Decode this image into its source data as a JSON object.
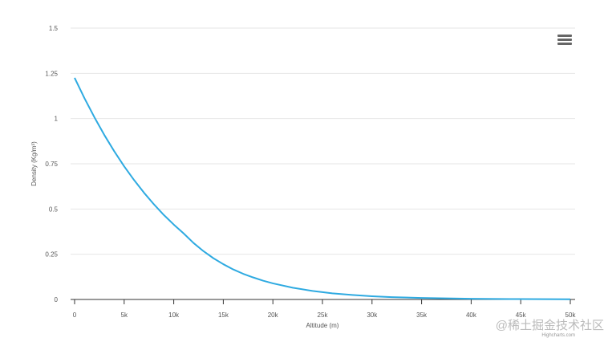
{
  "chart_data": {
    "type": "line",
    "x_label": "Altitude (m)",
    "y_label": "Density (Kg/m³)",
    "credits": "Highcharts.com",
    "watermark": "@稀土掘金技术社区",
    "x": [
      0,
      1000,
      2000,
      3000,
      4000,
      5000,
      6000,
      7000,
      8000,
      9000,
      10000,
      11000,
      12000,
      13000,
      14000,
      15000,
      16000,
      17000,
      18000,
      19000,
      20000,
      22000,
      24000,
      26000,
      28000,
      30000,
      32000,
      35000,
      40000,
      45000,
      50000
    ],
    "series": [
      {
        "name": "Density",
        "color": "#2eaae1",
        "values": [
          1.225,
          1.112,
          1.007,
          0.909,
          0.819,
          0.736,
          0.66,
          0.59,
          0.526,
          0.467,
          0.414,
          0.365,
          0.312,
          0.267,
          0.228,
          0.195,
          0.166,
          0.142,
          0.122,
          0.104,
          0.089,
          0.065,
          0.047,
          0.034,
          0.025,
          0.018,
          0.013,
          0.0085,
          0.004,
          0.002,
          0.001
        ]
      }
    ],
    "xlim": [
      0,
      50000
    ],
    "xticks": [
      0,
      {
        "value": 5000,
        "label": "5k"
      },
      {
        "value": 10000,
        "label": "10k"
      },
      {
        "value": 15000,
        "label": "15k"
      },
      {
        "value": 20000,
        "label": "20k"
      },
      {
        "value": 25000,
        "label": "25k"
      },
      {
        "value": 30000,
        "label": "30k"
      },
      {
        "value": 35000,
        "label": "35k"
      },
      {
        "value": 40000,
        "label": "40k"
      },
      {
        "value": 45000,
        "label": "45k"
      },
      {
        "value": 50000,
        "label": "50k"
      }
    ],
    "ylim": [
      0,
      1.5
    ],
    "yticks": [
      0,
      0.25,
      0.5,
      0.75,
      1,
      1.25,
      1.5
    ],
    "grid": true
  }
}
